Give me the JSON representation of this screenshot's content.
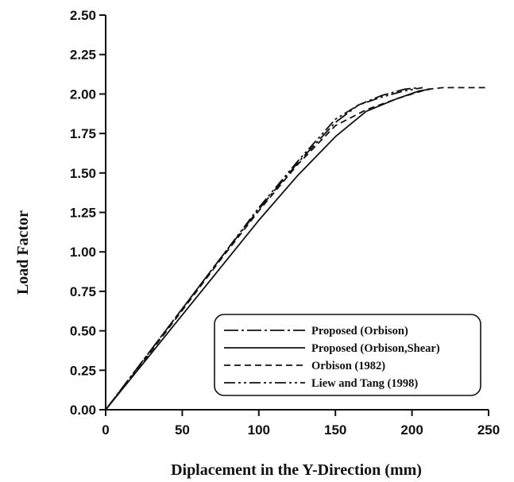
{
  "chart_data": {
    "type": "line",
    "xlabel": "Diplacement in the Y-Direction (mm)",
    "ylabel": "Load Factor",
    "xlim": [
      0,
      250
    ],
    "ylim": [
      0,
      2.5
    ],
    "x_ticks": [
      "0",
      "50",
      "100",
      "150",
      "200",
      "250"
    ],
    "y_ticks": [
      "0.00",
      "0.25",
      "0.50",
      "0.75",
      "1.00",
      "1.25",
      "1.50",
      "1.75",
      "2.00",
      "2.25",
      "2.50"
    ],
    "grid": false,
    "legend_position": "bottom-right",
    "series": [
      {
        "name": "Proposed (Orbison)",
        "style": "dash-dot-long",
        "color": "#111111",
        "points": [
          [
            0,
            0
          ],
          [
            25,
            0.32
          ],
          [
            50,
            0.64
          ],
          [
            75,
            0.96
          ],
          [
            100,
            1.27
          ],
          [
            125,
            1.56
          ],
          [
            150,
            1.82
          ],
          [
            165,
            1.93
          ],
          [
            180,
            1.99
          ],
          [
            195,
            2.03
          ],
          [
            205,
            2.04
          ]
        ]
      },
      {
        "name": "Proposed (Orbison,Shear)",
        "style": "solid",
        "color": "#111111",
        "points": [
          [
            0,
            0
          ],
          [
            25,
            0.3
          ],
          [
            50,
            0.6
          ],
          [
            75,
            0.9
          ],
          [
            100,
            1.2
          ],
          [
            125,
            1.48
          ],
          [
            150,
            1.73
          ],
          [
            170,
            1.89
          ],
          [
            190,
            1.97
          ],
          [
            205,
            2.02
          ],
          [
            212,
            2.03
          ]
        ]
      },
      {
        "name": "Orbison (1982)",
        "style": "dashed",
        "color": "#111111",
        "points": [
          [
            0,
            0
          ],
          [
            25,
            0.31
          ],
          [
            50,
            0.63
          ],
          [
            75,
            0.95
          ],
          [
            100,
            1.26
          ],
          [
            125,
            1.55
          ],
          [
            150,
            1.8
          ],
          [
            170,
            1.9
          ],
          [
            190,
            1.97
          ],
          [
            210,
            2.03
          ],
          [
            220,
            2.04
          ],
          [
            250,
            2.04
          ]
        ]
      },
      {
        "name": "Liew and Tang (1998)",
        "style": "dash-dot-dot",
        "color": "#111111",
        "points": [
          [
            0,
            0
          ],
          [
            25,
            0.32
          ],
          [
            50,
            0.64
          ],
          [
            75,
            0.96
          ],
          [
            100,
            1.28
          ],
          [
            125,
            1.57
          ],
          [
            150,
            1.84
          ],
          [
            165,
            1.93
          ],
          [
            180,
            1.98
          ],
          [
            195,
            2.02
          ],
          [
            207,
            2.04
          ]
        ]
      }
    ]
  }
}
